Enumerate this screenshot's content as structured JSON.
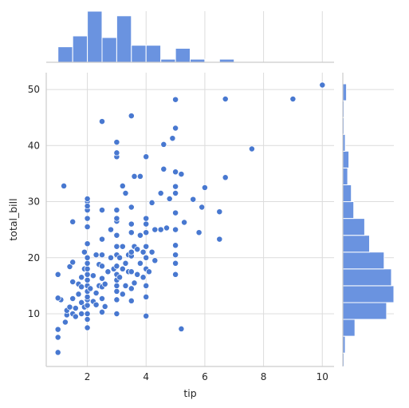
{
  "chart_data": {
    "type": "scatter",
    "title": "",
    "xlabel": "tip",
    "ylabel": "total_bill",
    "xlim": [
      0.6,
      10.4
    ],
    "ylim": [
      0.6,
      53.0
    ],
    "xticks": [
      2,
      4,
      6,
      8,
      10
    ],
    "yticks": [
      10,
      20,
      30,
      40,
      50
    ],
    "grid": true,
    "point_color": "#4878d0",
    "hist_color": "#6a93e0",
    "points": [
      [
        1.0,
        3.1
      ],
      [
        1.0,
        5.8
      ],
      [
        1.0,
        7.2
      ],
      [
        1.1,
        12.5
      ],
      [
        1.0,
        12.8
      ],
      [
        1.0,
        17.0
      ],
      [
        1.2,
        32.8
      ],
      [
        1.25,
        8.5
      ],
      [
        1.3,
        9.8
      ],
      [
        1.3,
        10.6
      ],
      [
        1.4,
        11.2
      ],
      [
        1.4,
        18.4
      ],
      [
        1.5,
        10.0
      ],
      [
        1.5,
        12.7
      ],
      [
        1.5,
        15.7
      ],
      [
        1.5,
        19.2
      ],
      [
        1.5,
        26.4
      ],
      [
        1.6,
        9.5
      ],
      [
        1.6,
        11.0
      ],
      [
        1.7,
        13.5
      ],
      [
        1.7,
        15.3
      ],
      [
        1.8,
        10.0
      ],
      [
        1.8,
        12.0
      ],
      [
        1.8,
        14.8
      ],
      [
        1.8,
        16.5
      ],
      [
        1.9,
        11.2
      ],
      [
        1.9,
        18.0
      ],
      [
        1.9,
        21.0
      ],
      [
        2.0,
        7.5
      ],
      [
        2.0,
        9.0
      ],
      [
        2.0,
        10.0
      ],
      [
        2.0,
        11.5
      ],
      [
        2.0,
        12.5
      ],
      [
        2.0,
        13.0
      ],
      [
        2.0,
        14.0
      ],
      [
        2.0,
        15.0
      ],
      [
        2.0,
        16.0
      ],
      [
        2.0,
        17.0
      ],
      [
        2.0,
        18.0
      ],
      [
        2.0,
        19.0
      ],
      [
        2.0,
        20.0
      ],
      [
        2.0,
        22.5
      ],
      [
        2.0,
        25.5
      ],
      [
        2.0,
        27.0
      ],
      [
        2.0,
        28.5
      ],
      [
        2.0,
        30.0
      ],
      [
        2.0,
        30.5
      ],
      [
        2.0,
        29.2
      ],
      [
        2.1,
        14.5
      ],
      [
        2.2,
        12.2
      ],
      [
        2.2,
        16.8
      ],
      [
        2.3,
        11.6
      ],
      [
        2.3,
        13.7
      ],
      [
        2.3,
        20.5
      ],
      [
        2.4,
        15.0
      ],
      [
        2.4,
        18.8
      ],
      [
        2.5,
        10.3
      ],
      [
        2.5,
        12.7
      ],
      [
        2.5,
        14.8
      ],
      [
        2.5,
        16.3
      ],
      [
        2.5,
        18.5
      ],
      [
        2.5,
        20.5
      ],
      [
        2.5,
        23.3
      ],
      [
        2.5,
        28.5
      ],
      [
        2.5,
        44.3
      ],
      [
        2.6,
        11.3
      ],
      [
        2.6,
        15.3
      ],
      [
        2.7,
        17.5
      ],
      [
        2.8,
        20.0
      ],
      [
        2.8,
        25.0
      ],
      [
        2.9,
        18.0
      ],
      [
        3.0,
        10.0
      ],
      [
        3.0,
        12.5
      ],
      [
        3.0,
        14.0
      ],
      [
        3.0,
        15.0
      ],
      [
        3.0,
        16.0
      ],
      [
        3.0,
        17.0
      ],
      [
        3.0,
        18.5
      ],
      [
        3.0,
        20.5
      ],
      [
        3.0,
        22.0
      ],
      [
        3.0,
        24.0
      ],
      [
        3.0,
        26.5
      ],
      [
        3.0,
        27.0
      ],
      [
        3.0,
        28.5
      ],
      [
        3.0,
        38.0
      ],
      [
        3.0,
        38.7
      ],
      [
        3.0,
        40.6
      ],
      [
        3.1,
        16.5
      ],
      [
        3.1,
        20.0
      ],
      [
        3.2,
        13.5
      ],
      [
        3.2,
        18.0
      ],
      [
        3.2,
        22.0
      ],
      [
        3.2,
        32.8
      ],
      [
        3.3,
        15.0
      ],
      [
        3.3,
        19.0
      ],
      [
        3.3,
        31.5
      ],
      [
        3.4,
        17.5
      ],
      [
        3.4,
        20.5
      ],
      [
        3.5,
        12.3
      ],
      [
        3.5,
        14.5
      ],
      [
        3.5,
        17.5
      ],
      [
        3.5,
        20.3
      ],
      [
        3.5,
        21.0
      ],
      [
        3.5,
        24.5
      ],
      [
        3.5,
        26.0
      ],
      [
        3.5,
        29.0
      ],
      [
        3.5,
        45.3
      ],
      [
        3.6,
        15.5
      ],
      [
        3.6,
        22.0
      ],
      [
        3.6,
        34.5
      ],
      [
        3.7,
        17.0
      ],
      [
        3.7,
        21.5
      ],
      [
        3.8,
        19.0
      ],
      [
        3.8,
        24.0
      ],
      [
        3.8,
        34.5
      ],
      [
        3.9,
        16.5
      ],
      [
        3.9,
        21.0
      ],
      [
        4.0,
        9.6
      ],
      [
        4.0,
        13.0
      ],
      [
        4.0,
        15.0
      ],
      [
        4.0,
        18.0
      ],
      [
        4.0,
        20.0
      ],
      [
        4.0,
        22.0
      ],
      [
        4.0,
        24.5
      ],
      [
        4.0,
        26.0
      ],
      [
        4.0,
        27.0
      ],
      [
        4.0,
        38.0
      ],
      [
        4.1,
        17.5
      ],
      [
        4.2,
        21.0
      ],
      [
        4.2,
        29.8
      ],
      [
        4.3,
        19.5
      ],
      [
        4.3,
        25.0
      ],
      [
        4.5,
        31.5
      ],
      [
        4.5,
        25.0
      ],
      [
        4.6,
        35.8
      ],
      [
        4.6,
        40.2
      ],
      [
        4.7,
        25.3
      ],
      [
        4.8,
        30.5
      ],
      [
        4.9,
        41.3
      ],
      [
        5.0,
        17.0
      ],
      [
        5.0,
        19.0
      ],
      [
        5.0,
        20.5
      ],
      [
        5.0,
        22.2
      ],
      [
        5.0,
        25.0
      ],
      [
        5.0,
        28.0
      ],
      [
        5.0,
        31.5
      ],
      [
        5.0,
        32.7
      ],
      [
        5.0,
        35.3
      ],
      [
        5.0,
        43.1
      ],
      [
        5.0,
        48.2
      ],
      [
        5.2,
        7.3
      ],
      [
        5.2,
        34.9
      ],
      [
        5.3,
        26.3
      ],
      [
        5.6,
        30.4
      ],
      [
        5.8,
        24.5
      ],
      [
        5.9,
        29.0
      ],
      [
        6.0,
        32.5
      ],
      [
        6.5,
        23.3
      ],
      [
        6.5,
        28.2
      ],
      [
        6.7,
        34.3
      ],
      [
        6.7,
        48.3
      ],
      [
        7.6,
        39.4
      ],
      [
        9.0,
        48.3
      ],
      [
        10.0,
        50.8
      ]
    ],
    "hist_x": {
      "bins": [
        1.0,
        1.5,
        2.0,
        2.5,
        3.0,
        3.5,
        4.0,
        4.5,
        5.0,
        5.5,
        6.0,
        6.5,
        7.0
      ],
      "heights": [
        10,
        17,
        33,
        16,
        30,
        11,
        11,
        2,
        9,
        2,
        0,
        2
      ]
    },
    "hist_y": {
      "bins": [
        0,
        3,
        6,
        9,
        12,
        15,
        18,
        21,
        24,
        27,
        30,
        33,
        36,
        39,
        42,
        45,
        48,
        51
      ],
      "heights": [
        1,
        2,
        10,
        36,
        42,
        40,
        34,
        22,
        18,
        9,
        7,
        4,
        5,
        2,
        1,
        1,
        3
      ]
    }
  }
}
